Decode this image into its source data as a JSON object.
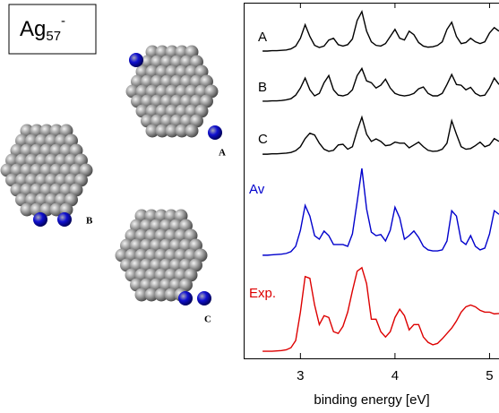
{
  "chart_data": {
    "type": "line",
    "title": {
      "base": "Ag",
      "sub": "57",
      "sup": "-"
    },
    "xlabel": "binding energy [eV]",
    "xlim": [
      2.4,
      5.1
    ],
    "xticks": [
      3,
      4,
      5
    ],
    "ylim": [
      0,
      10
    ],
    "cluster_labels": [
      "A",
      "B",
      "C"
    ],
    "x": [
      2.6,
      2.65,
      2.7,
      2.75,
      2.8,
      2.85,
      2.9,
      2.95,
      3.0,
      3.05,
      3.1,
      3.15,
      3.2,
      3.25,
      3.3,
      3.35,
      3.4,
      3.45,
      3.5,
      3.55,
      3.6,
      3.65,
      3.7,
      3.75,
      3.8,
      3.85,
      3.9,
      3.95,
      4.0,
      4.05,
      4.1,
      4.15,
      4.2,
      4.25,
      4.3,
      4.35,
      4.4,
      4.45,
      4.5,
      4.55,
      4.6,
      4.65,
      4.7,
      4.75,
      4.8,
      4.85,
      4.9,
      4.95,
      5.0,
      5.05,
      5.1
    ],
    "series": [
      {
        "name": "A",
        "color": "#000000",
        "values": [
          8.64,
          8.64,
          8.65,
          8.65,
          8.66,
          8.67,
          8.7,
          8.78,
          9.0,
          9.38,
          9.05,
          8.8,
          8.74,
          8.78,
          8.95,
          9.0,
          8.82,
          8.78,
          8.82,
          8.98,
          9.5,
          9.75,
          9.2,
          8.9,
          8.8,
          8.78,
          8.85,
          9.05,
          9.25,
          9.0,
          8.95,
          9.2,
          9.1,
          8.88,
          8.78,
          8.75,
          8.76,
          8.8,
          8.9,
          9.25,
          9.45,
          9.05,
          8.85,
          8.88,
          9.0,
          8.9,
          8.85,
          8.9,
          9.15,
          9.3,
          9.2
        ]
      },
      {
        "name": "B",
        "color": "#000000",
        "values": [
          7.23,
          7.23,
          7.24,
          7.24,
          7.25,
          7.27,
          7.3,
          7.4,
          7.6,
          7.88,
          7.55,
          7.38,
          7.45,
          7.75,
          7.95,
          7.55,
          7.4,
          7.38,
          7.42,
          7.55,
          7.95,
          8.15,
          7.8,
          7.75,
          7.6,
          7.68,
          7.85,
          7.6,
          7.45,
          7.4,
          7.38,
          7.4,
          7.45,
          7.58,
          7.63,
          7.45,
          7.38,
          7.38,
          7.45,
          7.7,
          7.98,
          7.7,
          7.68,
          7.55,
          7.62,
          7.45,
          7.38,
          7.4,
          7.6,
          7.88,
          7.7
        ]
      },
      {
        "name": "C",
        "color": "#000000",
        "values": [
          5.74,
          5.74,
          5.75,
          5.75,
          5.76,
          5.77,
          5.79,
          5.84,
          5.95,
          6.18,
          6.33,
          6.28,
          6.05,
          5.88,
          5.82,
          5.85,
          6.0,
          6.02,
          5.88,
          5.95,
          6.4,
          6.78,
          6.3,
          6.1,
          6.17,
          6.1,
          5.98,
          6.0,
          6.08,
          6.05,
          6.05,
          5.92,
          6.0,
          6.08,
          5.95,
          5.85,
          5.82,
          5.83,
          5.88,
          6.05,
          6.68,
          6.3,
          5.95,
          5.88,
          5.9,
          5.98,
          6.08,
          5.95,
          6.0,
          6.18,
          6.1
        ]
      },
      {
        "name": "Av",
        "color": "#0000cc",
        "values": [
          2.9,
          2.9,
          2.91,
          2.92,
          2.93,
          2.95,
          3.0,
          3.15,
          3.6,
          4.3,
          4.0,
          3.45,
          3.35,
          3.58,
          3.45,
          3.2,
          3.2,
          3.2,
          3.15,
          3.5,
          4.4,
          5.34,
          4.2,
          3.55,
          3.45,
          3.48,
          3.3,
          3.6,
          4.25,
          3.95,
          3.35,
          3.45,
          3.58,
          3.4,
          3.15,
          3.05,
          3.02,
          3.02,
          3.05,
          3.3,
          4.15,
          4.0,
          3.3,
          3.2,
          3.45,
          3.15,
          3.05,
          3.1,
          3.5,
          4.15,
          4.05
        ]
      },
      {
        "name": "Exp.",
        "color": "#dd0000",
        "values": [
          0.2,
          0.2,
          0.2,
          0.21,
          0.22,
          0.24,
          0.3,
          0.5,
          1.3,
          2.3,
          2.25,
          1.5,
          0.95,
          1.2,
          1.15,
          0.75,
          0.7,
          0.9,
          1.3,
          1.9,
          2.45,
          2.55,
          2.1,
          1.1,
          1.1,
          0.75,
          0.6,
          0.75,
          1.15,
          1.38,
          1.2,
          0.8,
          0.95,
          0.95,
          0.6,
          0.45,
          0.38,
          0.42,
          0.55,
          0.7,
          0.85,
          1.05,
          1.3,
          1.45,
          1.5,
          1.45,
          1.35,
          1.3,
          1.3,
          1.25,
          1.26
        ]
      }
    ]
  }
}
